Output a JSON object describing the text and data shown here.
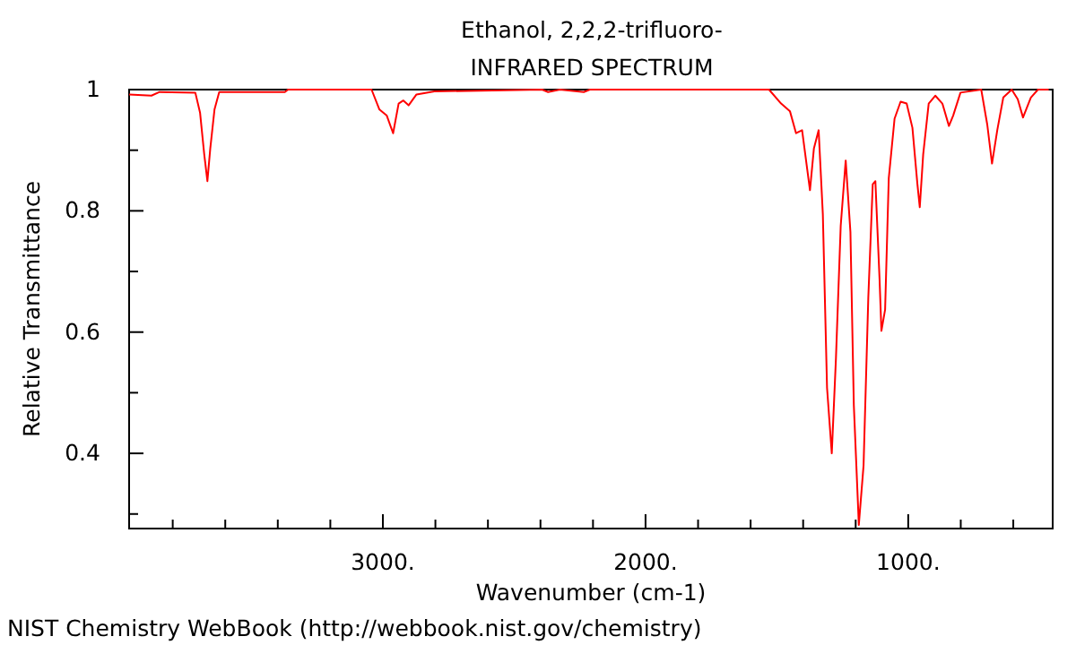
{
  "chart_data": {
    "type": "line",
    "title": "Ethanol, 2,2,2-trifluoro-",
    "subtitle": "INFRARED SPECTRUM",
    "xlabel": "Wavenumber (cm-1)",
    "ylabel": "Relative Transmittance",
    "annotations": [
      "NIST Chemistry WebBook (http://webbook.nist.gov/chemistry)"
    ],
    "xlim": [
      3966,
      450
    ],
    "ylim": [
      0.276,
      1.0
    ],
    "xticks": [
      {
        "value": 3800,
        "label": null
      },
      {
        "value": 3600,
        "label": null
      },
      {
        "value": 3400,
        "label": null
      },
      {
        "value": 3200,
        "label": null
      },
      {
        "value": 3000,
        "label": "3000."
      },
      {
        "value": 2800,
        "label": null
      },
      {
        "value": 2600,
        "label": null
      },
      {
        "value": 2400,
        "label": null
      },
      {
        "value": 2200,
        "label": null
      },
      {
        "value": 2000,
        "label": "2000."
      },
      {
        "value": 1800,
        "label": null
      },
      {
        "value": 1600,
        "label": null
      },
      {
        "value": 1400,
        "label": null
      },
      {
        "value": 1200,
        "label": null
      },
      {
        "value": 1000,
        "label": "1000."
      },
      {
        "value": 800,
        "label": null
      },
      {
        "value": 600,
        "label": null
      }
    ],
    "yticks": [
      {
        "value": 1,
        "label": "1"
      },
      {
        "value": 0.9,
        "label": null
      },
      {
        "value": 0.8,
        "label": "0.8"
      },
      {
        "value": 0.7,
        "label": null
      },
      {
        "value": 0.6,
        "label": "0.6"
      },
      {
        "value": 0.5,
        "label": null
      },
      {
        "value": 0.4,
        "label": "0.4"
      },
      {
        "value": 0.3,
        "label": null
      }
    ],
    "grid": false,
    "marker": "none",
    "line_style": "solid",
    "series": [
      {
        "color": "#ff0000",
        "x": [
          3966,
          3881,
          3850,
          3714,
          3696,
          3680,
          3668,
          3657,
          3641,
          3623,
          3373,
          3361,
          3043,
          3013,
          2985,
          2961,
          2940,
          2922,
          2902,
          2872,
          2804,
          2394,
          2371,
          2326,
          2235,
          2212,
          1530,
          1484,
          1450,
          1427,
          1404,
          1374,
          1359,
          1341,
          1325,
          1309,
          1291,
          1275,
          1257,
          1238,
          1220,
          1207,
          1188,
          1170,
          1152,
          1135,
          1125,
          1109,
          1102,
          1088,
          1074,
          1052,
          1029,
          1006,
          984,
          965,
          956,
          943,
          922,
          897,
          870,
          845,
          829,
          801,
          722,
          699,
          681,
          661,
          638,
          606,
          583,
          563,
          533,
          506,
          465
        ],
        "values": [
          0.992,
          0.99,
          0.996,
          0.995,
          0.962,
          0.893,
          0.849,
          0.903,
          0.967,
          0.996,
          0.996,
          1.0,
          1.0,
          0.967,
          0.957,
          0.928,
          0.977,
          0.982,
          0.974,
          0.992,
          0.997,
          1.0,
          0.996,
          1.0,
          0.996,
          1.0,
          1.0,
          0.977,
          0.964,
          0.928,
          0.933,
          0.834,
          0.903,
          0.933,
          0.794,
          0.508,
          0.4,
          0.558,
          0.775,
          0.883,
          0.765,
          0.479,
          0.282,
          0.38,
          0.656,
          0.844,
          0.849,
          0.686,
          0.602,
          0.637,
          0.854,
          0.952,
          0.98,
          0.977,
          0.937,
          0.844,
          0.806,
          0.893,
          0.977,
          0.99,
          0.977,
          0.94,
          0.957,
          0.995,
          1.0,
          0.942,
          0.878,
          0.933,
          0.987,
          1.0,
          0.984,
          0.954,
          0.987,
          1.0,
          1.0
        ]
      }
    ]
  }
}
